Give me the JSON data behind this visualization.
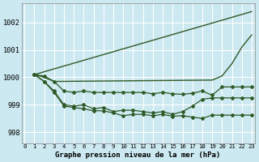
{
  "title": "Graphe pression niveau de la mer (hPa)",
  "background_color": "#cce8f0",
  "grid_color": "#ffffff",
  "line_color": "#2d5a27",
  "x_ticks": [
    0,
    1,
    2,
    3,
    4,
    5,
    6,
    7,
    8,
    9,
    10,
    11,
    12,
    13,
    14,
    15,
    16,
    17,
    18,
    19,
    20,
    21,
    22,
    23
  ],
  "y_ticks": [
    998,
    999,
    1000,
    1001,
    1002
  ],
  "ylim": [
    997.6,
    1002.7
  ],
  "xlim": [
    -0.3,
    23.3
  ],
  "lines": [
    {
      "x": [
        1,
        23
      ],
      "y": [
        1000.1,
        1002.4
      ],
      "marker": null,
      "lw": 1.0
    },
    {
      "x": [
        1,
        2,
        3,
        19,
        20,
        21,
        22,
        23
      ],
      "y": [
        1000.1,
        1000.0,
        999.85,
        999.9,
        1000.05,
        1000.5,
        1001.1,
        1001.55
      ],
      "marker": null,
      "lw": 1.0
    },
    {
      "x": [
        1,
        2,
        3,
        4,
        5,
        6,
        7,
        8,
        9,
        10,
        11,
        12,
        13,
        14,
        15,
        16,
        17,
        18,
        19,
        20,
        21,
        22,
        23
      ],
      "y": [
        1000.1,
        1000.05,
        999.85,
        999.5,
        999.45,
        999.5,
        999.45,
        999.45,
        999.45,
        999.45,
        999.45,
        999.45,
        999.4,
        999.45,
        999.4,
        999.38,
        999.42,
        999.5,
        999.35,
        999.65,
        999.65,
        999.65,
        999.65
      ],
      "marker": "D",
      "lw": 0.9
    },
    {
      "x": [
        1,
        2,
        3,
        4,
        5,
        6,
        7,
        8,
        9,
        10,
        11,
        12,
        13,
        14,
        15,
        16,
        17,
        18,
        19,
        20,
        21,
        22,
        23
      ],
      "y": [
        1000.1,
        999.85,
        999.5,
        999.0,
        998.95,
        999.0,
        998.85,
        998.9,
        998.75,
        998.8,
        998.8,
        998.75,
        998.7,
        998.75,
        998.65,
        998.75,
        998.95,
        999.2,
        999.25,
        999.25,
        999.25,
        999.25,
        999.25
      ],
      "marker": "D",
      "lw": 0.9
    },
    {
      "x": [
        1,
        2,
        3,
        4,
        5,
        6,
        7,
        8,
        9,
        10,
        11,
        12,
        13,
        14,
        15,
        16,
        17,
        18,
        19,
        20,
        21,
        22,
        23
      ],
      "y": [
        1000.1,
        999.85,
        999.45,
        998.95,
        998.9,
        998.85,
        998.78,
        998.78,
        998.7,
        998.6,
        998.65,
        998.65,
        998.6,
        998.65,
        998.58,
        998.6,
        998.55,
        998.5,
        998.62,
        998.62,
        998.62,
        998.62,
        998.62
      ],
      "marker": "D",
      "lw": 0.9
    }
  ]
}
